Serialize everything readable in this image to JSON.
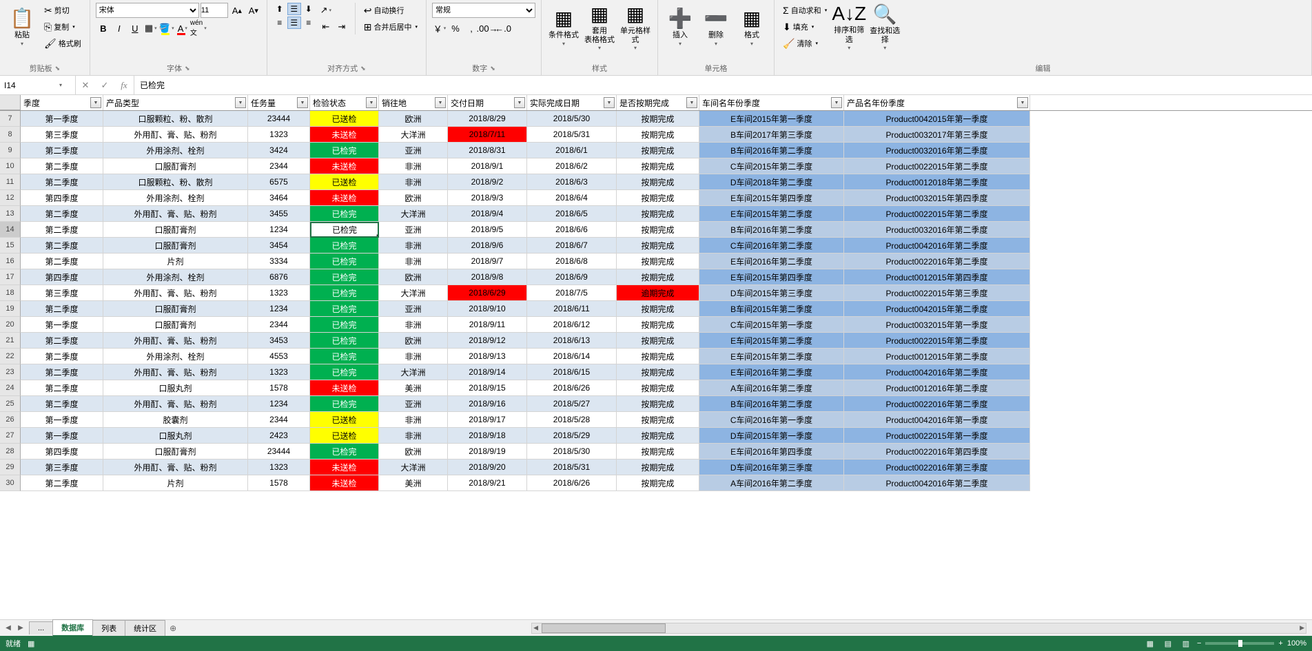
{
  "ribbon": {
    "clipboard": {
      "paste": "粘贴",
      "cut": "剪切",
      "copy": "复制",
      "brush": "格式刷",
      "label": "剪贴板"
    },
    "font": {
      "name": "宋体",
      "size": "11",
      "label": "字体"
    },
    "align": {
      "wrap": "自动换行",
      "merge": "合并后居中",
      "label": "对齐方式"
    },
    "number": {
      "format": "常规",
      "label": "数字"
    },
    "styles": {
      "cfmt": "条件格式",
      "tblfmt": "套用\n表格格式",
      "cellstyle": "单元格样式",
      "label": "样式"
    },
    "cells": {
      "insert": "插入",
      "delete": "删除",
      "format": "格式",
      "label": "单元格"
    },
    "editing": {
      "sum": "自动求和",
      "fill": "填充",
      "clear": "清除",
      "sort": "排序和筛选",
      "find": "查找和选择",
      "label": "编辑"
    }
  },
  "namebox": "I14",
  "formula": "已检完",
  "headers": [
    "季度",
    "产品类型",
    "任务量",
    "检验状态",
    "销往地",
    "交付日期",
    "实际完成日期",
    "是否按期完成",
    "车间名年份季度",
    "产品名年份季度"
  ],
  "rows": [
    {
      "n": 7,
      "q": "第一季度",
      "p": "口服颗粒、粉、散剂",
      "t": "23444",
      "s": "已送检",
      "sc": "yellow",
      "d": "欧洲",
      "dd": "2018/8/29",
      "ad": "2018/5/30",
      "ok": "按期完成",
      "w": "E车间2015年第一季度",
      "pn": "Product0042015年第一季度"
    },
    {
      "n": 8,
      "q": "第三季度",
      "p": "外用酊、膏、贴、粉剂",
      "t": "1323",
      "s": "未送检",
      "sc": "red",
      "d": "大洋洲",
      "dd": "2018/7/11",
      "ddr": true,
      "ad": "2018/5/31",
      "ok": "按期完成",
      "w": "B车间2017年第三季度",
      "pn": "Product0032017年第三季度"
    },
    {
      "n": 9,
      "q": "第二季度",
      "p": "外用涂剂、栓剂",
      "t": "3424",
      "s": "已检完",
      "sc": "green",
      "d": "亚洲",
      "dd": "2018/8/31",
      "ad": "2018/6/1",
      "ok": "按期完成",
      "w": "B车间2016年第二季度",
      "pn": "Product0032016年第二季度"
    },
    {
      "n": 10,
      "q": "第二季度",
      "p": "口服酊膏剂",
      "t": "2344",
      "s": "未送检",
      "sc": "red",
      "d": "非洲",
      "dd": "2018/9/1",
      "ad": "2018/6/2",
      "ok": "按期完成",
      "w": "C车间2015年第二季度",
      "pn": "Product0022015年第二季度"
    },
    {
      "n": 11,
      "q": "第二季度",
      "p": "口服颗粒、粉、散剂",
      "t": "6575",
      "s": "已送检",
      "sc": "yellow",
      "d": "非洲",
      "dd": "2018/9/2",
      "ad": "2018/6/3",
      "ok": "按期完成",
      "w": "D车间2018年第二季度",
      "pn": "Product0012018年第二季度"
    },
    {
      "n": 12,
      "q": "第四季度",
      "p": "外用涂剂、栓剂",
      "t": "3464",
      "s": "未送检",
      "sc": "red",
      "d": "欧洲",
      "dd": "2018/9/3",
      "ad": "2018/6/4",
      "ok": "按期完成",
      "w": "E车间2015年第四季度",
      "pn": "Product0032015年第四季度"
    },
    {
      "n": 13,
      "q": "第二季度",
      "p": "外用酊、膏、贴、粉剂",
      "t": "3455",
      "s": "已检完",
      "sc": "green",
      "d": "大洋洲",
      "dd": "2018/9/4",
      "ad": "2018/6/5",
      "ok": "按期完成",
      "w": "E车间2015年第二季度",
      "pn": "Product0022015年第二季度"
    },
    {
      "n": 14,
      "q": "第二季度",
      "p": "口服酊膏剂",
      "t": "1234",
      "s": "已检完",
      "sc": "sel",
      "d": "亚洲",
      "dd": "2018/9/5",
      "ad": "2018/6/6",
      "ok": "按期完成",
      "w": "B车间2016年第二季度",
      "pn": "Product0032016年第二季度"
    },
    {
      "n": 15,
      "q": "第二季度",
      "p": "口服酊膏剂",
      "t": "3454",
      "s": "已检完",
      "sc": "green",
      "d": "非洲",
      "dd": "2018/9/6",
      "ad": "2018/6/7",
      "ok": "按期完成",
      "w": "C车间2016年第二季度",
      "pn": "Product0042016年第二季度"
    },
    {
      "n": 16,
      "q": "第二季度",
      "p": "片剂",
      "t": "3334",
      "s": "已检完",
      "sc": "green",
      "d": "非洲",
      "dd": "2018/9/7",
      "ad": "2018/6/8",
      "ok": "按期完成",
      "w": "E车间2016年第二季度",
      "pn": "Product0022016年第二季度"
    },
    {
      "n": 17,
      "q": "第四季度",
      "p": "外用涂剂、栓剂",
      "t": "6876",
      "s": "已检完",
      "sc": "green",
      "d": "欧洲",
      "dd": "2018/9/8",
      "ad": "2018/6/9",
      "ok": "按期完成",
      "w": "E车间2015年第四季度",
      "pn": "Product0012015年第四季度"
    },
    {
      "n": 18,
      "q": "第三季度",
      "p": "外用酊、膏、贴、粉剂",
      "t": "1323",
      "s": "已检完",
      "sc": "green",
      "d": "大洋洲",
      "dd": "2018/6/29",
      "ddr": true,
      "ad": "2018/7/5",
      "ok": "逾期完成",
      "okr": true,
      "w": "D车间2015年第三季度",
      "pn": "Product0022015年第三季度"
    },
    {
      "n": 19,
      "q": "第二季度",
      "p": "口服酊膏剂",
      "t": "1234",
      "s": "已检完",
      "sc": "green",
      "d": "亚洲",
      "dd": "2018/9/10",
      "ad": "2018/6/11",
      "ok": "按期完成",
      "w": "B车间2015年第二季度",
      "pn": "Product0042015年第二季度"
    },
    {
      "n": 20,
      "q": "第一季度",
      "p": "口服酊膏剂",
      "t": "2344",
      "s": "已检完",
      "sc": "green",
      "d": "非洲",
      "dd": "2018/9/11",
      "ad": "2018/6/12",
      "ok": "按期完成",
      "w": "C车间2015年第一季度",
      "pn": "Product0032015年第一季度"
    },
    {
      "n": 21,
      "q": "第二季度",
      "p": "外用酊、膏、贴、粉剂",
      "t": "3453",
      "s": "已检完",
      "sc": "green",
      "d": "欧洲",
      "dd": "2018/9/12",
      "ad": "2018/6/13",
      "ok": "按期完成",
      "w": "E车间2015年第二季度",
      "pn": "Product0022015年第二季度"
    },
    {
      "n": 22,
      "q": "第二季度",
      "p": "外用涂剂、栓剂",
      "t": "4553",
      "s": "已检完",
      "sc": "green",
      "d": "非洲",
      "dd": "2018/9/13",
      "ad": "2018/6/14",
      "ok": "按期完成",
      "w": "E车间2015年第二季度",
      "pn": "Product0012015年第二季度"
    },
    {
      "n": 23,
      "q": "第二季度",
      "p": "外用酊、膏、贴、粉剂",
      "t": "1323",
      "s": "已检完",
      "sc": "green",
      "d": "大洋洲",
      "dd": "2018/9/14",
      "ad": "2018/6/15",
      "ok": "按期完成",
      "w": "E车间2016年第二季度",
      "pn": "Product0042016年第二季度"
    },
    {
      "n": 24,
      "q": "第二季度",
      "p": "口服丸剂",
      "t": "1578",
      "s": "未送检",
      "sc": "red",
      "d": "美洲",
      "dd": "2018/9/15",
      "ad": "2018/6/26",
      "ok": "按期完成",
      "w": "A车间2016年第二季度",
      "pn": "Product0012016年第二季度"
    },
    {
      "n": 25,
      "q": "第二季度",
      "p": "外用酊、膏、贴、粉剂",
      "t": "1234",
      "s": "已检完",
      "sc": "green",
      "d": "亚洲",
      "dd": "2018/9/16",
      "ad": "2018/5/27",
      "ok": "按期完成",
      "w": "B车间2016年第二季度",
      "pn": "Product0022016年第二季度"
    },
    {
      "n": 26,
      "q": "第一季度",
      "p": "胶囊剂",
      "t": "2344",
      "s": "已送检",
      "sc": "yellow",
      "d": "非洲",
      "dd": "2018/9/17",
      "ad": "2018/5/28",
      "ok": "按期完成",
      "w": "C车间2016年第一季度",
      "pn": "Product0042016年第一季度"
    },
    {
      "n": 27,
      "q": "第一季度",
      "p": "口服丸剂",
      "t": "2423",
      "s": "已送检",
      "sc": "yellow",
      "d": "非洲",
      "dd": "2018/9/18",
      "ad": "2018/5/29",
      "ok": "按期完成",
      "w": "D车间2015年第一季度",
      "pn": "Product0022015年第一季度"
    },
    {
      "n": 28,
      "q": "第四季度",
      "p": "口服酊膏剂",
      "t": "23444",
      "s": "已检完",
      "sc": "green",
      "d": "欧洲",
      "dd": "2018/9/19",
      "ad": "2018/5/30",
      "ok": "按期完成",
      "w": "E车间2016年第四季度",
      "pn": "Product0022016年第四季度"
    },
    {
      "n": 29,
      "q": "第三季度",
      "p": "外用酊、膏、贴、粉剂",
      "t": "1323",
      "s": "未送检",
      "sc": "red",
      "d": "大洋洲",
      "dd": "2018/9/20",
      "ad": "2018/5/31",
      "ok": "按期完成",
      "w": "D车间2016年第三季度",
      "pn": "Product0022016年第三季度"
    },
    {
      "n": 30,
      "q": "第二季度",
      "p": "片剂",
      "t": "1578",
      "s": "未送检",
      "sc": "red",
      "d": "美洲",
      "dd": "2018/9/21",
      "ad": "2018/6/26",
      "ok": "按期完成",
      "w": "A车间2016年第二季度",
      "pn": "Product0042016年第二季度"
    }
  ],
  "tabs": {
    "ellipsis": "...",
    "t1": "数据库",
    "t2": "列表",
    "t3": "统计区"
  },
  "status": {
    "ready": "就绪",
    "zoom": "100%"
  }
}
